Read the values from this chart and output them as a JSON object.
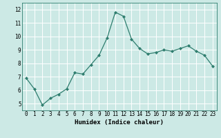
{
  "xlabel": "Humidex (Indice chaleur)",
  "ylabel": "",
  "x": [
    0,
    1,
    2,
    3,
    4,
    5,
    6,
    7,
    8,
    9,
    10,
    11,
    12,
    13,
    14,
    15,
    16,
    17,
    18,
    19,
    20,
    21,
    22,
    23
  ],
  "y": [
    6.9,
    6.1,
    4.9,
    5.4,
    5.7,
    6.1,
    7.3,
    7.2,
    7.9,
    8.6,
    9.9,
    11.8,
    11.5,
    9.8,
    9.1,
    8.7,
    8.8,
    9.0,
    8.9,
    9.1,
    9.3,
    8.9,
    8.6,
    7.8
  ],
  "line_color": "#2e7d6e",
  "marker": "D",
  "marker_size": 2.0,
  "bg_color": "#cce9e5",
  "grid_color": "#ffffff",
  "ylim": [
    4.5,
    12.5
  ],
  "xlim": [
    -0.5,
    23.5
  ],
  "yticks": [
    5,
    6,
    7,
    8,
    9,
    10,
    11,
    12
  ],
  "xticks": [
    0,
    1,
    2,
    3,
    4,
    5,
    6,
    7,
    8,
    9,
    10,
    11,
    12,
    13,
    14,
    15,
    16,
    17,
    18,
    19,
    20,
    21,
    22,
    23
  ],
  "label_fontsize": 6.5,
  "tick_fontsize": 5.5,
  "line_width": 0.9
}
